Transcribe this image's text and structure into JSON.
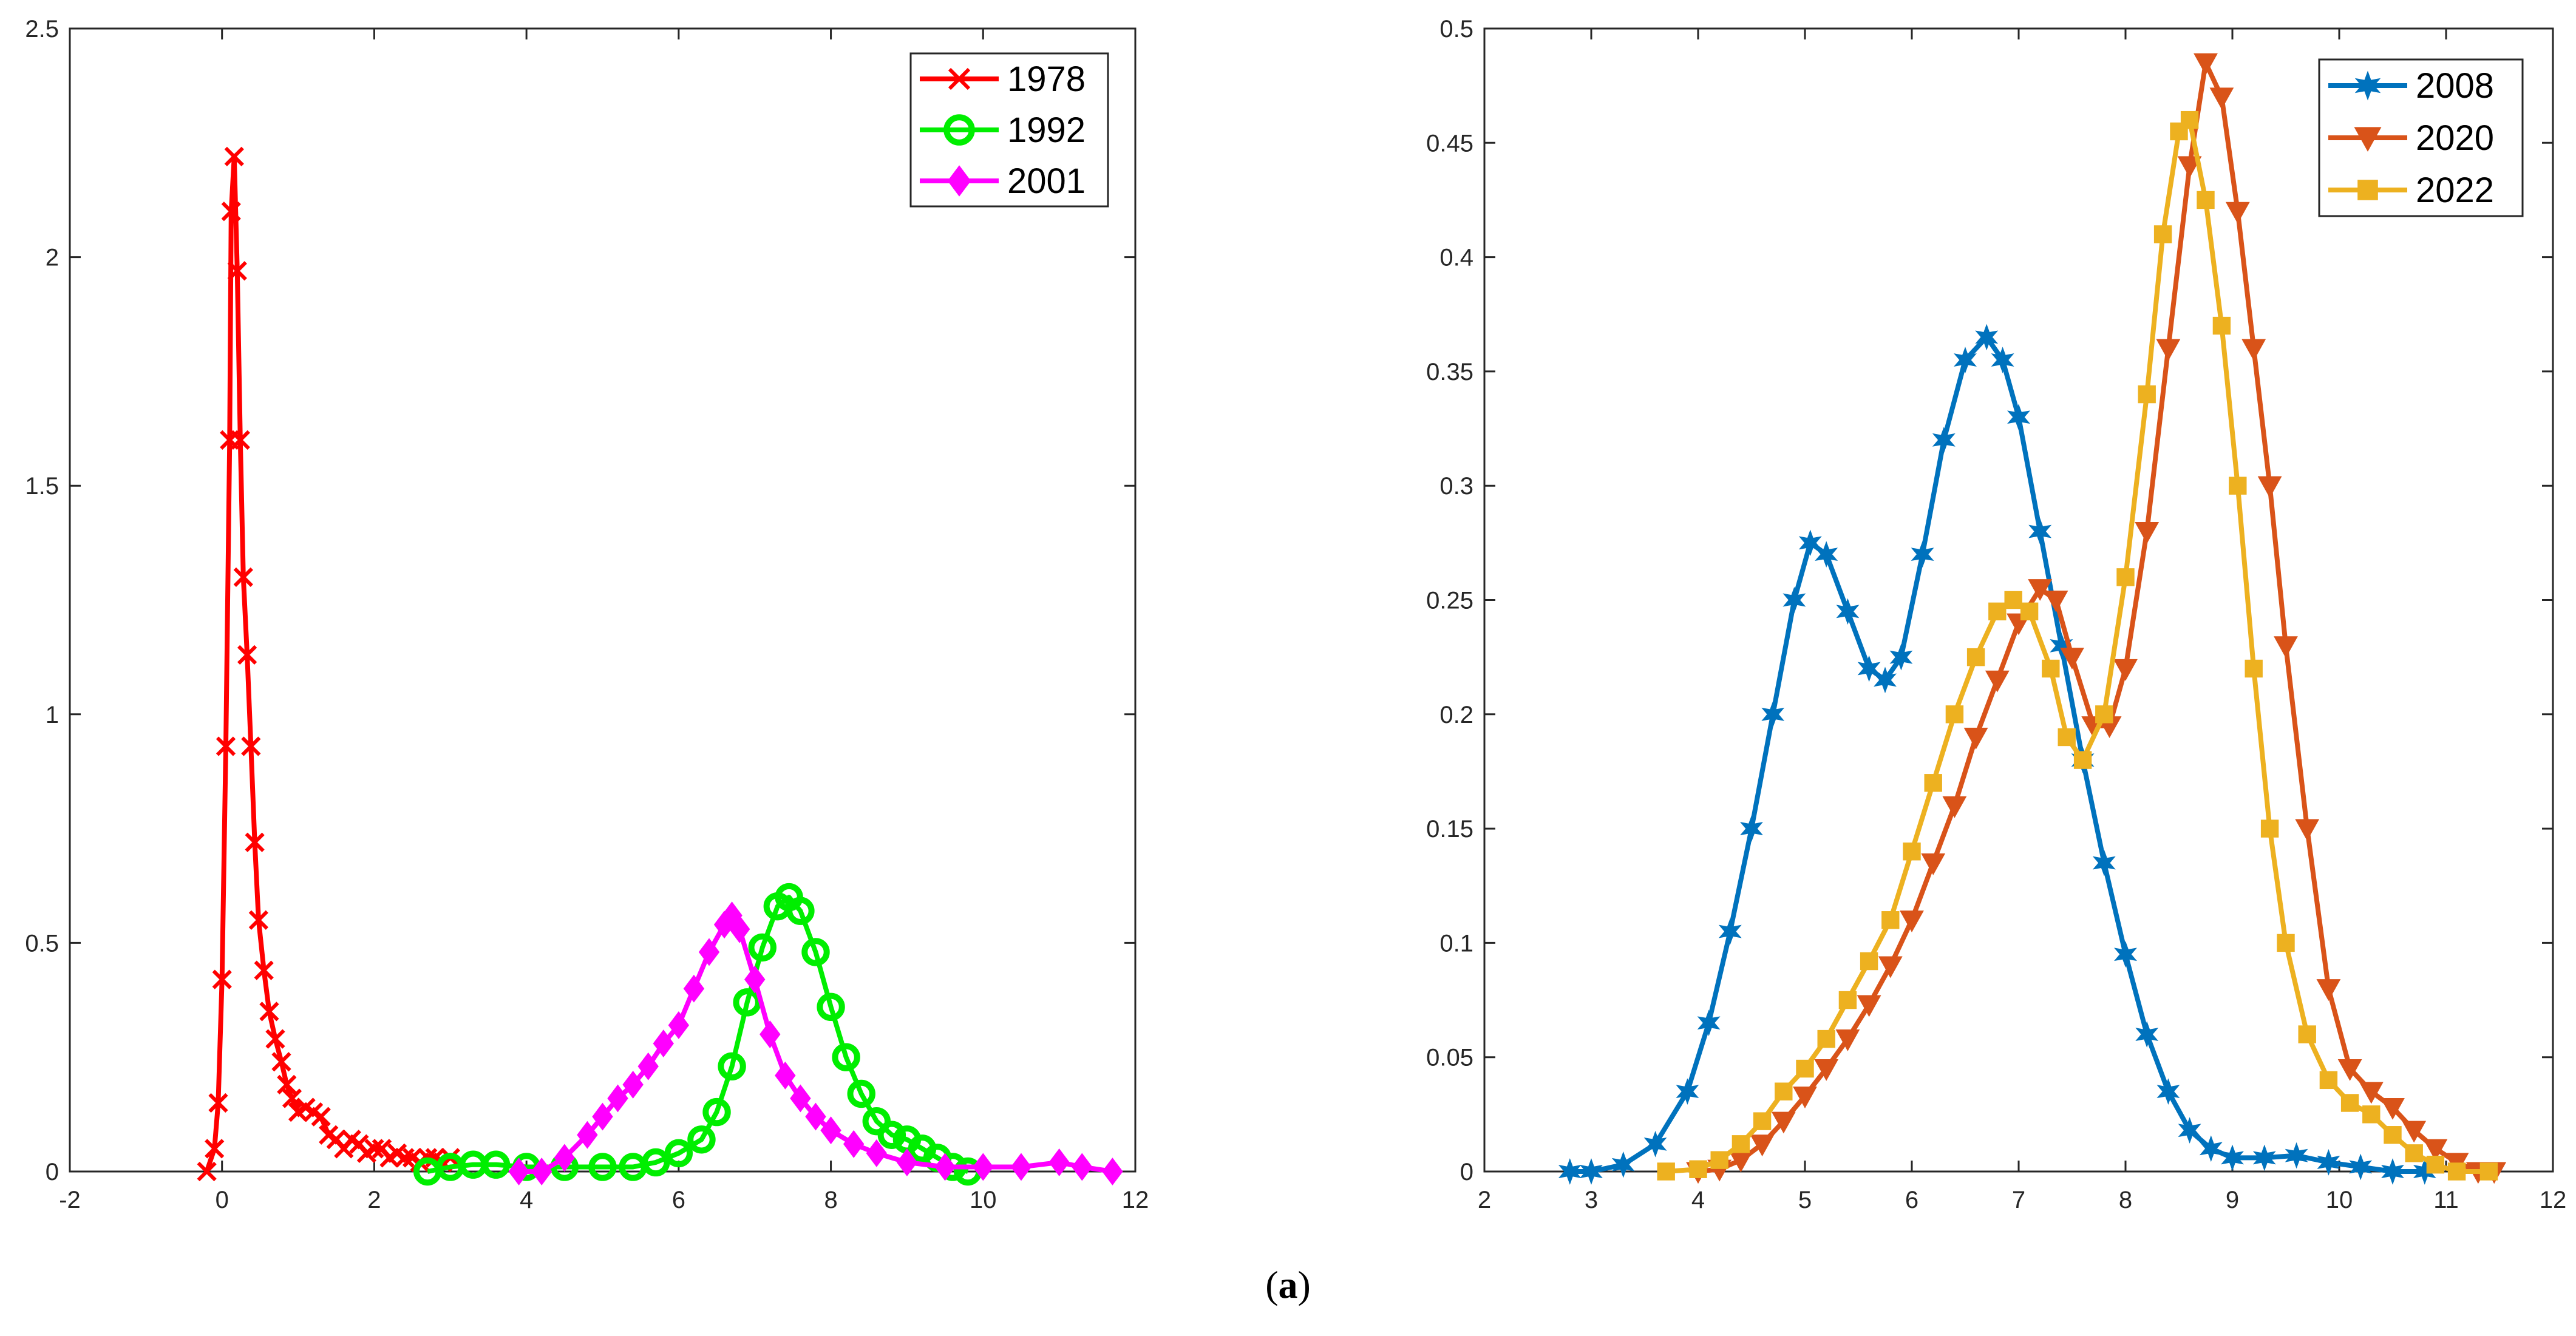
{
  "caption": {
    "open": "(",
    "letter": "a",
    "close": ")"
  },
  "chart_data": [
    {
      "type": "line",
      "title": "",
      "xlabel": "",
      "ylabel": "",
      "xlim": [
        -2,
        12
      ],
      "ylim": [
        0,
        2.5
      ],
      "xticks": [
        -2,
        0,
        2,
        4,
        6,
        8,
        10,
        12
      ],
      "yticks": [
        0,
        0.5,
        1,
        1.5,
        2,
        2.5
      ],
      "legend_position": "top-right",
      "series": [
        {
          "name": "1978",
          "color": "#ff0000",
          "marker": "x",
          "points": [
            [
              -0.2,
              0.0
            ],
            [
              -0.1,
              0.05
            ],
            [
              -0.05,
              0.15
            ],
            [
              0.0,
              0.42
            ],
            [
              0.05,
              0.93
            ],
            [
              0.1,
              1.6
            ],
            [
              0.12,
              2.1
            ],
            [
              0.16,
              2.22
            ],
            [
              0.2,
              1.97
            ],
            [
              0.24,
              1.6
            ],
            [
              0.28,
              1.3
            ],
            [
              0.33,
              1.13
            ],
            [
              0.38,
              0.93
            ],
            [
              0.43,
              0.72
            ],
            [
              0.48,
              0.55
            ],
            [
              0.55,
              0.44
            ],
            [
              0.62,
              0.35
            ],
            [
              0.7,
              0.29
            ],
            [
              0.78,
              0.24
            ],
            [
              0.85,
              0.19
            ],
            [
              0.92,
              0.16
            ],
            [
              1.0,
              0.13
            ],
            [
              1.1,
              0.14
            ],
            [
              1.2,
              0.13
            ],
            [
              1.3,
              0.12
            ],
            [
              1.4,
              0.08
            ],
            [
              1.5,
              0.07
            ],
            [
              1.6,
              0.05
            ],
            [
              1.7,
              0.07
            ],
            [
              1.8,
              0.06
            ],
            [
              1.9,
              0.04
            ],
            [
              2.0,
              0.05
            ],
            [
              2.1,
              0.05
            ],
            [
              2.2,
              0.03
            ],
            [
              2.3,
              0.04
            ],
            [
              2.4,
              0.03
            ],
            [
              2.5,
              0.03
            ],
            [
              2.6,
              0.02
            ],
            [
              2.7,
              0.03
            ],
            [
              2.8,
              0.03
            ],
            [
              2.9,
              0.02
            ],
            [
              3.0,
              0.03
            ]
          ]
        },
        {
          "name": "1992",
          "color": "#00ee00",
          "marker": "o",
          "points": [
            [
              2.7,
              0.0
            ],
            [
              3.0,
              0.01
            ],
            [
              3.3,
              0.015
            ],
            [
              3.6,
              0.015
            ],
            [
              4.0,
              0.01
            ],
            [
              4.5,
              0.01
            ],
            [
              5.0,
              0.01
            ],
            [
              5.4,
              0.01
            ],
            [
              5.7,
              0.02
            ],
            [
              6.0,
              0.04
            ],
            [
              6.3,
              0.07
            ],
            [
              6.5,
              0.13
            ],
            [
              6.7,
              0.23
            ],
            [
              6.9,
              0.37
            ],
            [
              7.1,
              0.49
            ],
            [
              7.3,
              0.58
            ],
            [
              7.45,
              0.6
            ],
            [
              7.6,
              0.57
            ],
            [
              7.8,
              0.48
            ],
            [
              8.0,
              0.36
            ],
            [
              8.2,
              0.25
            ],
            [
              8.4,
              0.17
            ],
            [
              8.6,
              0.11
            ],
            [
              8.8,
              0.08
            ],
            [
              9.0,
              0.07
            ],
            [
              9.2,
              0.05
            ],
            [
              9.4,
              0.03
            ],
            [
              9.6,
              0.01
            ],
            [
              9.8,
              0.0
            ]
          ]
        },
        {
          "name": "2001",
          "color": "#ff00ff",
          "marker": "d",
          "points": [
            [
              3.9,
              0.0
            ],
            [
              4.2,
              0.0
            ],
            [
              4.5,
              0.03
            ],
            [
              4.8,
              0.08
            ],
            [
              5.0,
              0.12
            ],
            [
              5.2,
              0.16
            ],
            [
              5.4,
              0.19
            ],
            [
              5.6,
              0.23
            ],
            [
              5.8,
              0.28
            ],
            [
              6.0,
              0.32
            ],
            [
              6.2,
              0.4
            ],
            [
              6.4,
              0.48
            ],
            [
              6.6,
              0.54
            ],
            [
              6.7,
              0.56
            ],
            [
              6.8,
              0.53
            ],
            [
              7.0,
              0.42
            ],
            [
              7.2,
              0.3
            ],
            [
              7.4,
              0.21
            ],
            [
              7.6,
              0.16
            ],
            [
              7.8,
              0.12
            ],
            [
              8.0,
              0.09
            ],
            [
              8.3,
              0.06
            ],
            [
              8.6,
              0.04
            ],
            [
              9.0,
              0.02
            ],
            [
              9.5,
              0.01
            ],
            [
              10.0,
              0.01
            ],
            [
              10.5,
              0.01
            ],
            [
              11.0,
              0.02
            ],
            [
              11.3,
              0.01
            ],
            [
              11.7,
              0.0
            ]
          ]
        }
      ]
    },
    {
      "type": "line",
      "title": "",
      "xlabel": "",
      "ylabel": "",
      "xlim": [
        2,
        12
      ],
      "ylim": [
        0,
        0.5
      ],
      "xticks": [
        2,
        3,
        4,
        5,
        6,
        7,
        8,
        9,
        10,
        11,
        12
      ],
      "yticks": [
        0,
        0.05,
        0.1,
        0.15,
        0.2,
        0.25,
        0.3,
        0.35,
        0.4,
        0.45,
        0.5
      ],
      "legend_position": "top-right",
      "series": [
        {
          "name": "2008",
          "color": "#0072bd",
          "marker": "star",
          "points": [
            [
              2.8,
              0.0
            ],
            [
              3.0,
              0.0
            ],
            [
              3.3,
              0.003
            ],
            [
              3.6,
              0.012
            ],
            [
              3.9,
              0.035
            ],
            [
              4.1,
              0.065
            ],
            [
              4.3,
              0.105
            ],
            [
              4.5,
              0.15
            ],
            [
              4.7,
              0.2
            ],
            [
              4.9,
              0.25
            ],
            [
              5.05,
              0.275
            ],
            [
              5.2,
              0.27
            ],
            [
              5.4,
              0.245
            ],
            [
              5.6,
              0.22
            ],
            [
              5.75,
              0.215
            ],
            [
              5.9,
              0.225
            ],
            [
              6.1,
              0.27
            ],
            [
              6.3,
              0.32
            ],
            [
              6.5,
              0.355
            ],
            [
              6.7,
              0.365
            ],
            [
              6.85,
              0.355
            ],
            [
              7.0,
              0.33
            ],
            [
              7.2,
              0.28
            ],
            [
              7.4,
              0.23
            ],
            [
              7.6,
              0.18
            ],
            [
              7.8,
              0.135
            ],
            [
              8.0,
              0.095
            ],
            [
              8.2,
              0.06
            ],
            [
              8.4,
              0.035
            ],
            [
              8.6,
              0.018
            ],
            [
              8.8,
              0.01
            ],
            [
              9.0,
              0.006
            ],
            [
              9.3,
              0.006
            ],
            [
              9.6,
              0.007
            ],
            [
              9.9,
              0.004
            ],
            [
              10.2,
              0.002
            ],
            [
              10.5,
              0.0
            ],
            [
              10.8,
              0.0
            ]
          ]
        },
        {
          "name": "2020",
          "color": "#d95319",
          "marker": "triangle-down",
          "points": [
            [
              4.0,
              0.0
            ],
            [
              4.2,
              0.001
            ],
            [
              4.4,
              0.005
            ],
            [
              4.6,
              0.012
            ],
            [
              4.8,
              0.022
            ],
            [
              5.0,
              0.033
            ],
            [
              5.2,
              0.045
            ],
            [
              5.4,
              0.058
            ],
            [
              5.6,
              0.073
            ],
            [
              5.8,
              0.09
            ],
            [
              6.0,
              0.11
            ],
            [
              6.2,
              0.135
            ],
            [
              6.4,
              0.16
            ],
            [
              6.6,
              0.19
            ],
            [
              6.8,
              0.215
            ],
            [
              7.0,
              0.24
            ],
            [
              7.2,
              0.255
            ],
            [
              7.35,
              0.25
            ],
            [
              7.5,
              0.225
            ],
            [
              7.7,
              0.195
            ],
            [
              7.85,
              0.195
            ],
            [
              8.0,
              0.22
            ],
            [
              8.2,
              0.28
            ],
            [
              8.4,
              0.36
            ],
            [
              8.6,
              0.44
            ],
            [
              8.75,
              0.485
            ],
            [
              8.9,
              0.47
            ],
            [
              9.05,
              0.42
            ],
            [
              9.2,
              0.36
            ],
            [
              9.35,
              0.3
            ],
            [
              9.5,
              0.23
            ],
            [
              9.7,
              0.15
            ],
            [
              9.9,
              0.08
            ],
            [
              10.1,
              0.045
            ],
            [
              10.3,
              0.035
            ],
            [
              10.5,
              0.028
            ],
            [
              10.7,
              0.018
            ],
            [
              10.9,
              0.01
            ],
            [
              11.1,
              0.004
            ],
            [
              11.3,
              0.0
            ],
            [
              11.45,
              0.0
            ]
          ]
        },
        {
          "name": "2022",
          "color": "#edb120",
          "marker": "square",
          "points": [
            [
              3.7,
              0.0
            ],
            [
              4.0,
              0.001
            ],
            [
              4.2,
              0.005
            ],
            [
              4.4,
              0.012
            ],
            [
              4.6,
              0.022
            ],
            [
              4.8,
              0.035
            ],
            [
              5.0,
              0.045
            ],
            [
              5.2,
              0.058
            ],
            [
              5.4,
              0.075
            ],
            [
              5.6,
              0.092
            ],
            [
              5.8,
              0.11
            ],
            [
              6.0,
              0.14
            ],
            [
              6.2,
              0.17
            ],
            [
              6.4,
              0.2
            ],
            [
              6.6,
              0.225
            ],
            [
              6.8,
              0.245
            ],
            [
              6.95,
              0.25
            ],
            [
              7.1,
              0.245
            ],
            [
              7.3,
              0.22
            ],
            [
              7.45,
              0.19
            ],
            [
              7.6,
              0.18
            ],
            [
              7.8,
              0.2
            ],
            [
              8.0,
              0.26
            ],
            [
              8.2,
              0.34
            ],
            [
              8.35,
              0.41
            ],
            [
              8.5,
              0.455
            ],
            [
              8.6,
              0.46
            ],
            [
              8.75,
              0.425
            ],
            [
              8.9,
              0.37
            ],
            [
              9.05,
              0.3
            ],
            [
              9.2,
              0.22
            ],
            [
              9.35,
              0.15
            ],
            [
              9.5,
              0.1
            ],
            [
              9.7,
              0.06
            ],
            [
              9.9,
              0.04
            ],
            [
              10.1,
              0.03
            ],
            [
              10.3,
              0.025
            ],
            [
              10.5,
              0.016
            ],
            [
              10.7,
              0.008
            ],
            [
              10.9,
              0.003
            ],
            [
              11.1,
              0.0
            ],
            [
              11.4,
              0.0
            ]
          ]
        }
      ]
    }
  ]
}
